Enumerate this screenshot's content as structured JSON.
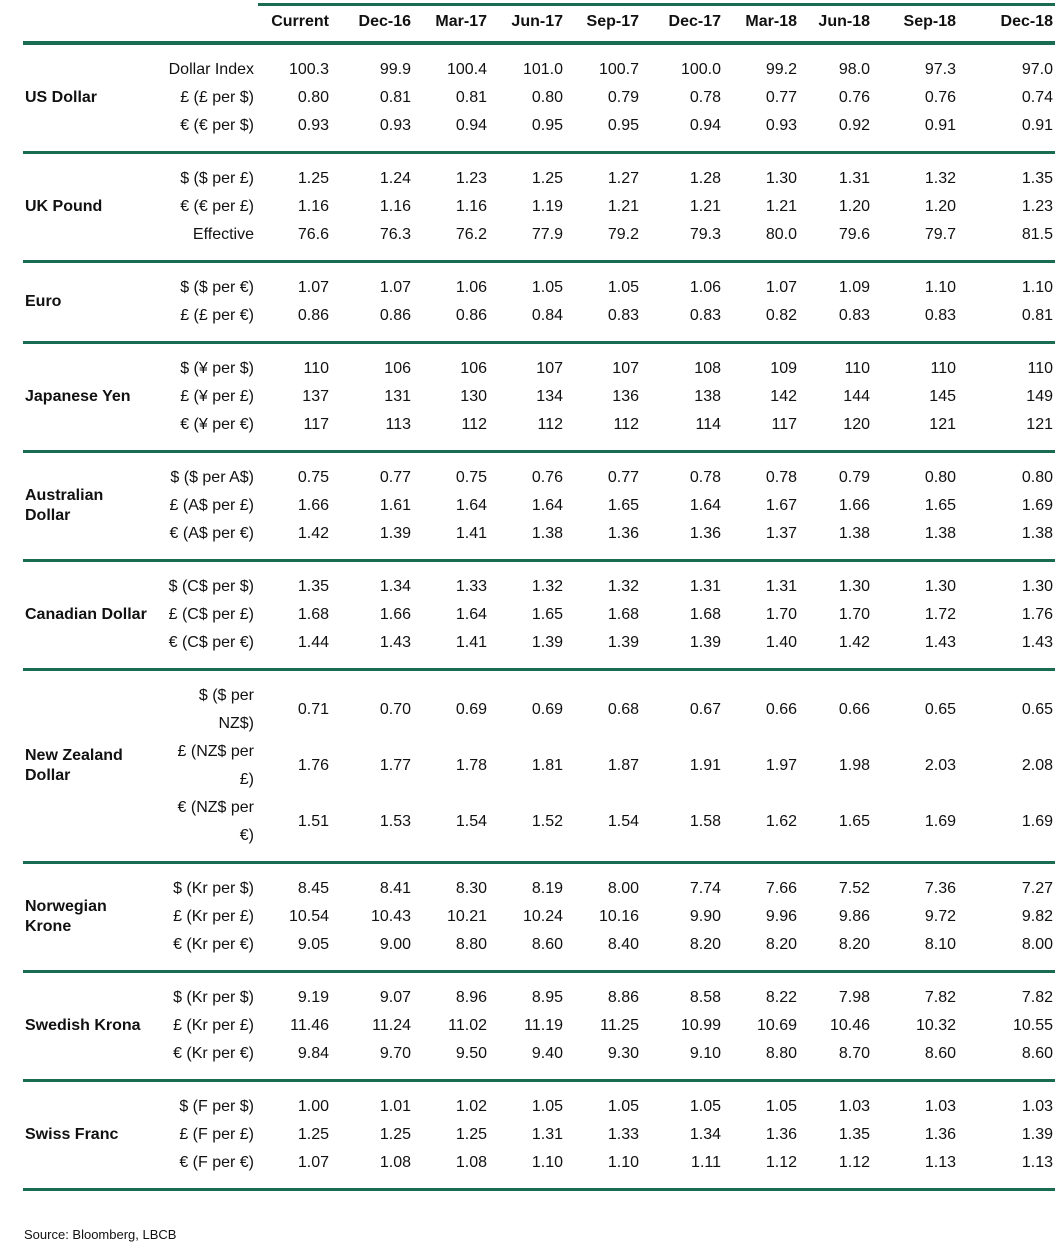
{
  "theme": {
    "accent_green": "#196B52",
    "text_color": "#111111",
    "background": "#FFFFFF"
  },
  "chart_data": {
    "type": "table",
    "columns": [
      "Current",
      "Dec-16",
      "Mar-17",
      "Jun-17",
      "Sep-17",
      "Dec-17",
      "Mar-18",
      "Jun-18",
      "Sep-18",
      "Dec-18"
    ],
    "groups": [
      {
        "name": "US Dollar",
        "rows": [
          {
            "label": "Dollar Index",
            "values": [
              "100.3",
              "99.9",
              "100.4",
              "101.0",
              "100.7",
              "100.0",
              "99.2",
              "98.0",
              "97.3",
              "97.0"
            ]
          },
          {
            "label": "£ (£ per $)",
            "values": [
              "0.80",
              "0.81",
              "0.81",
              "0.80",
              "0.79",
              "0.78",
              "0.77",
              "0.76",
              "0.76",
              "0.74"
            ]
          },
          {
            "label": "€ (€ per $)",
            "values": [
              "0.93",
              "0.93",
              "0.94",
              "0.95",
              "0.95",
              "0.94",
              "0.93",
              "0.92",
              "0.91",
              "0.91"
            ]
          }
        ]
      },
      {
        "name": "UK Pound",
        "rows": [
          {
            "label": "$ ($ per £)",
            "values": [
              "1.25",
              "1.24",
              "1.23",
              "1.25",
              "1.27",
              "1.28",
              "1.30",
              "1.31",
              "1.32",
              "1.35"
            ]
          },
          {
            "label": "€ (€ per £)",
            "values": [
              "1.16",
              "1.16",
              "1.16",
              "1.19",
              "1.21",
              "1.21",
              "1.21",
              "1.20",
              "1.20",
              "1.23"
            ]
          },
          {
            "label": "Effective",
            "values": [
              "76.6",
              "76.3",
              "76.2",
              "77.9",
              "79.2",
              "79.3",
              "80.0",
              "79.6",
              "79.7",
              "81.5"
            ]
          }
        ]
      },
      {
        "name": "Euro",
        "rows": [
          {
            "label": "$ ($ per €)",
            "values": [
              "1.07",
              "1.07",
              "1.06",
              "1.05",
              "1.05",
              "1.06",
              "1.07",
              "1.09",
              "1.10",
              "1.10"
            ]
          },
          {
            "label": "£ (£ per €)",
            "values": [
              "0.86",
              "0.86",
              "0.86",
              "0.84",
              "0.83",
              "0.83",
              "0.82",
              "0.83",
              "0.83",
              "0.81"
            ]
          }
        ]
      },
      {
        "name": "Japanese Yen",
        "rows": [
          {
            "label": "$ (¥ per $)",
            "values": [
              "110",
              "106",
              "106",
              "107",
              "107",
              "108",
              "109",
              "110",
              "110",
              "110"
            ]
          },
          {
            "label": "£ (¥ per £)",
            "values": [
              "137",
              "131",
              "130",
              "134",
              "136",
              "138",
              "142",
              "144",
              "145",
              "149"
            ]
          },
          {
            "label": "€ (¥ per €)",
            "values": [
              "117",
              "113",
              "112",
              "112",
              "112",
              "114",
              "117",
              "120",
              "121",
              "121"
            ]
          }
        ]
      },
      {
        "name": "Australian\nDollar",
        "rows": [
          {
            "label": "$ ($ per A$)",
            "values": [
              "0.75",
              "0.77",
              "0.75",
              "0.76",
              "0.77",
              "0.78",
              "0.78",
              "0.79",
              "0.80",
              "0.80"
            ]
          },
          {
            "label": "£ (A$ per £)",
            "values": [
              "1.66",
              "1.61",
              "1.64",
              "1.64",
              "1.65",
              "1.64",
              "1.67",
              "1.66",
              "1.65",
              "1.69"
            ]
          },
          {
            "label": "€ (A$ per €)",
            "values": [
              "1.42",
              "1.39",
              "1.41",
              "1.38",
              "1.36",
              "1.36",
              "1.37",
              "1.38",
              "1.38",
              "1.38"
            ]
          }
        ]
      },
      {
        "name": "Canadian Dollar",
        "rows": [
          {
            "label": "$ (C$ per $)",
            "values": [
              "1.35",
              "1.34",
              "1.33",
              "1.32",
              "1.32",
              "1.31",
              "1.31",
              "1.30",
              "1.30",
              "1.30"
            ]
          },
          {
            "label": "£ (C$ per £)",
            "values": [
              "1.68",
              "1.66",
              "1.64",
              "1.65",
              "1.68",
              "1.68",
              "1.70",
              "1.70",
              "1.72",
              "1.76"
            ]
          },
          {
            "label": "€ (C$ per €)",
            "values": [
              "1.44",
              "1.43",
              "1.41",
              "1.39",
              "1.39",
              "1.39",
              "1.40",
              "1.42",
              "1.43",
              "1.43"
            ]
          }
        ]
      },
      {
        "name": "New Zealand\nDollar",
        "rows": [
          {
            "label": "$ ($ per NZ$)",
            "values": [
              "0.71",
              "0.70",
              "0.69",
              "0.69",
              "0.68",
              "0.67",
              "0.66",
              "0.66",
              "0.65",
              "0.65"
            ]
          },
          {
            "label": "£ (NZ$ per £)",
            "values": [
              "1.76",
              "1.77",
              "1.78",
              "1.81",
              "1.87",
              "1.91",
              "1.97",
              "1.98",
              "2.03",
              "2.08"
            ]
          },
          {
            "label": "€ (NZ$ per €)",
            "values": [
              "1.51",
              "1.53",
              "1.54",
              "1.52",
              "1.54",
              "1.58",
              "1.62",
              "1.65",
              "1.69",
              "1.69"
            ]
          }
        ]
      },
      {
        "name": "Norwegian\nKrone",
        "rows": [
          {
            "label": "$ (Kr per $)",
            "values": [
              "8.45",
              "8.41",
              "8.30",
              "8.19",
              "8.00",
              "7.74",
              "7.66",
              "7.52",
              "7.36",
              "7.27"
            ]
          },
          {
            "label": "£ (Kr per £)",
            "values": [
              "10.54",
              "10.43",
              "10.21",
              "10.24",
              "10.16",
              "9.90",
              "9.96",
              "9.86",
              "9.72",
              "9.82"
            ]
          },
          {
            "label": "€ (Kr per €)",
            "values": [
              "9.05",
              "9.00",
              "8.80",
              "8.60",
              "8.40",
              "8.20",
              "8.20",
              "8.20",
              "8.10",
              "8.00"
            ]
          }
        ]
      },
      {
        "name": "Swedish Krona",
        "rows": [
          {
            "label": "$ (Kr per $)",
            "values": [
              "9.19",
              "9.07",
              "8.96",
              "8.95",
              "8.86",
              "8.58",
              "8.22",
              "7.98",
              "7.82",
              "7.82"
            ]
          },
          {
            "label": "£ (Kr per £)",
            "values": [
              "11.46",
              "11.24",
              "11.02",
              "11.19",
              "11.25",
              "10.99",
              "10.69",
              "10.46",
              "10.32",
              "10.55"
            ]
          },
          {
            "label": "€ (Kr per €)",
            "values": [
              "9.84",
              "9.70",
              "9.50",
              "9.40",
              "9.30",
              "9.10",
              "8.80",
              "8.70",
              "8.60",
              "8.60"
            ]
          }
        ]
      },
      {
        "name": "Swiss Franc",
        "rows": [
          {
            "label": "$ (F per $)",
            "values": [
              "1.00",
              "1.01",
              "1.02",
              "1.05",
              "1.05",
              "1.05",
              "1.05",
              "1.03",
              "1.03",
              "1.03"
            ]
          },
          {
            "label": "£ (F per £)",
            "values": [
              "1.25",
              "1.25",
              "1.25",
              "1.31",
              "1.33",
              "1.34",
              "1.36",
              "1.35",
              "1.36",
              "1.39"
            ]
          },
          {
            "label": "€ (F per €)",
            "values": [
              "1.07",
              "1.08",
              "1.08",
              "1.10",
              "1.10",
              "1.11",
              "1.12",
              "1.12",
              "1.13",
              "1.13"
            ]
          }
        ]
      },
      {
        "name": "",
        "rows": []
      }
    ],
    "source": "Source: Bloomberg, LBCB"
  }
}
